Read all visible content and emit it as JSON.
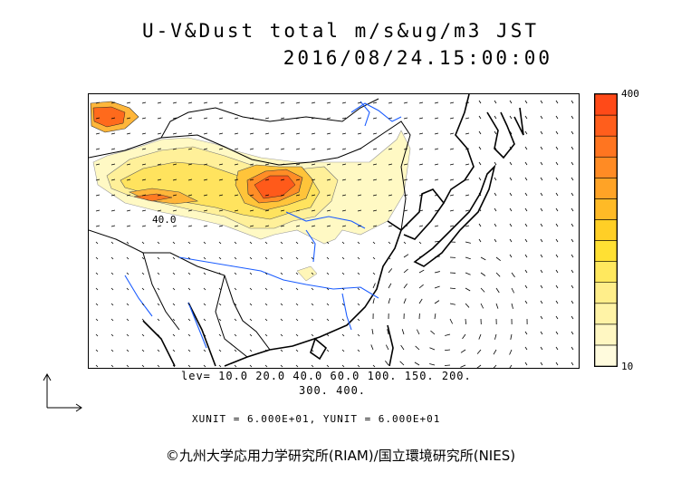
{
  "title": {
    "line1": "U-V&Dust total m/s&ug/m3 JST",
    "line2": "2016/08/24.15:00:00"
  },
  "contour_label": "40.0",
  "colorbar": {
    "max_label": "400",
    "min_label": "10",
    "levels": [
      10,
      20,
      40,
      60,
      100,
      150,
      200,
      300,
      400
    ],
    "colors": [
      "#fffbdd",
      "#fff7c2",
      "#fff3a6",
      "#ffee8a",
      "#ffe85e",
      "#ffe033",
      "#ffcf26",
      "#ffba26",
      "#ffa326",
      "#ff8b24",
      "#ff7520",
      "#ff5e1c",
      "#ff4a18"
    ]
  },
  "levels_text": {
    "line1": "lev= 10.0 20.0 40.0 60.0 100. 150. 200.",
    "line2": "300. 400."
  },
  "units_text": "XUNIT = 6.000E+01, YUNIT = 6.000E+01",
  "credit": "©九州大学応用力学研究所(RIAM)/国立環境研究所(NIES)",
  "colors": {
    "coast": "#000000",
    "rivers": "#1a5cff",
    "border": "#666666",
    "vectors": "#000000"
  }
}
